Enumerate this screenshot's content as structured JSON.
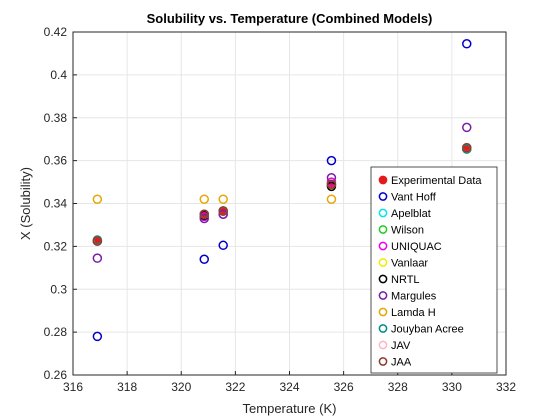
{
  "chart_data": {
    "type": "scatter",
    "title": "Solubility vs. Temperature (Combined Models)",
    "xlabel": "Temperature (K)",
    "ylabel": "X (Solubility)",
    "xlim": [
      316,
      332
    ],
    "ylim": [
      0.26,
      0.42
    ],
    "xticks": [
      316,
      318,
      320,
      322,
      324,
      326,
      328,
      330,
      332
    ],
    "yticks": [
      0.26,
      0.28,
      0.3,
      0.32,
      0.34,
      0.36,
      0.38,
      0.4,
      0.42
    ],
    "xtick_labels": [
      "316",
      "318",
      "320",
      "322",
      "324",
      "326",
      "328",
      "330",
      "332"
    ],
    "ytick_labels": [
      "0.26",
      "0.28",
      "0.3",
      "0.32",
      "0.34",
      "0.36",
      "0.38",
      "0.4",
      "0.42"
    ],
    "grid": true,
    "legend_position": "bottom-right",
    "series": [
      {
        "name": "Experimental Data",
        "color": "#e41a1c",
        "filled": true,
        "points": [
          [
            316.9,
            0.3225
          ],
          [
            320.85,
            0.335
          ],
          [
            321.55,
            0.3365
          ],
          [
            325.55,
            0.349
          ],
          [
            330.55,
            0.366
          ]
        ]
      },
      {
        "name": "Vant Hoff",
        "color": "#0000cc",
        "filled": false,
        "points": [
          [
            316.9,
            0.278
          ],
          [
            320.85,
            0.314
          ],
          [
            321.55,
            0.3205
          ],
          [
            325.55,
            0.36
          ],
          [
            330.55,
            0.4145
          ]
        ]
      },
      {
        "name": "Apelblat",
        "color": "#00e5ee",
        "filled": false,
        "points": [
          [
            316.9,
            0.3225
          ],
          [
            320.85,
            0.3345
          ],
          [
            321.55,
            0.3365
          ],
          [
            325.55,
            0.3485
          ],
          [
            330.55,
            0.3655
          ]
        ]
      },
      {
        "name": "Wilson",
        "color": "#22cc22",
        "filled": false,
        "points": [
          [
            316.9,
            0.3225
          ],
          [
            320.85,
            0.3345
          ],
          [
            321.55,
            0.3365
          ],
          [
            325.55,
            0.3485
          ],
          [
            330.55,
            0.3655
          ]
        ]
      },
      {
        "name": "UNIQUAC",
        "color": "#ee00ee",
        "filled": false,
        "points": [
          [
            316.9,
            0.3225
          ],
          [
            320.85,
            0.334
          ],
          [
            321.55,
            0.335
          ],
          [
            325.55,
            0.35
          ],
          [
            330.55,
            0.366
          ]
        ]
      },
      {
        "name": "Vanlaar",
        "color": "#eeee00",
        "filled": false,
        "points": [
          [
            316.9,
            0.3225
          ],
          [
            320.85,
            0.3345
          ],
          [
            321.55,
            0.3365
          ],
          [
            325.55,
            0.3485
          ],
          [
            330.55,
            0.3655
          ]
        ]
      },
      {
        "name": "NRTL",
        "color": "#000000",
        "filled": false,
        "points": [
          [
            316.9,
            0.3225
          ],
          [
            320.85,
            0.3345
          ],
          [
            321.55,
            0.3365
          ],
          [
            325.55,
            0.348
          ],
          [
            330.55,
            0.3655
          ]
        ]
      },
      {
        "name": "Margules",
        "color": "#7a1fa2",
        "filled": false,
        "points": [
          [
            316.9,
            0.3145
          ],
          [
            320.85,
            0.333
          ],
          [
            321.55,
            0.335
          ],
          [
            325.55,
            0.352
          ],
          [
            330.55,
            0.3755
          ]
        ]
      },
      {
        "name": "Lamda H",
        "color": "#e6a700",
        "filled": false,
        "points": [
          [
            316.9,
            0.342
          ],
          [
            320.85,
            0.342
          ],
          [
            321.55,
            0.342
          ],
          [
            325.55,
            0.342
          ],
          [
            330.55,
            0.366
          ]
        ]
      },
      {
        "name": "Jouyban Acree",
        "color": "#008b8b",
        "filled": false,
        "points": [
          [
            316.9,
            0.323
          ],
          [
            320.85,
            0.335
          ],
          [
            321.55,
            0.3365
          ],
          [
            325.55,
            0.349
          ],
          [
            330.55,
            0.3655
          ]
        ]
      },
      {
        "name": "JAV",
        "color": "#ffb6c1",
        "filled": false,
        "points": [
          [
            316.9,
            0.3225
          ],
          [
            320.85,
            0.335
          ],
          [
            321.55,
            0.3365
          ],
          [
            325.55,
            0.349
          ],
          [
            330.55,
            0.366
          ]
        ]
      },
      {
        "name": "JAA",
        "color": "#8b3a2a",
        "filled": false,
        "points": [
          [
            316.9,
            0.3225
          ],
          [
            320.85,
            0.335
          ],
          [
            321.55,
            0.3365
          ],
          [
            325.55,
            0.349
          ],
          [
            330.55,
            0.366
          ]
        ]
      }
    ]
  }
}
